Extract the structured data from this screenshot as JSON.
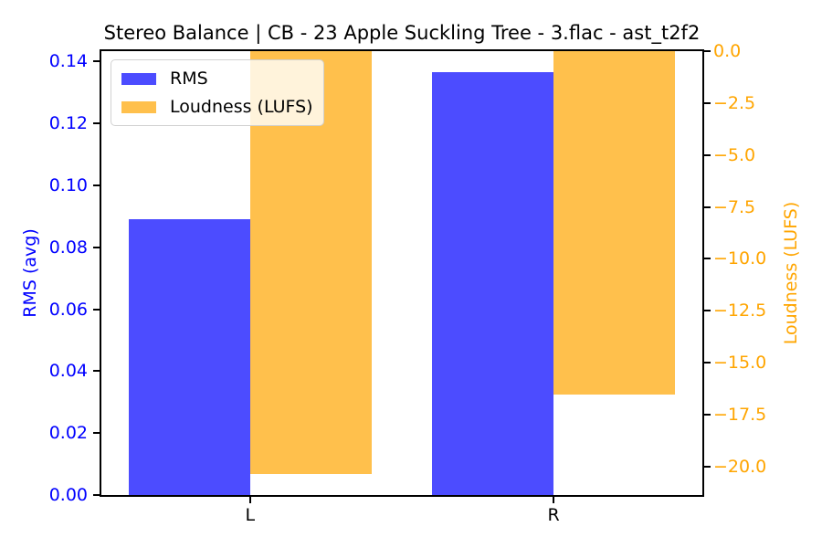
{
  "figure": {
    "background": "#ffffff",
    "axis_color": "#000000"
  },
  "chart_data": {
    "type": "bar",
    "title": "Stereo Balance | CB - 23 Apple Suckling Tree - 3.flac - ast_t2f2",
    "categories": [
      "L",
      "R"
    ],
    "series": [
      {
        "name": "RMS",
        "axis": "left",
        "color": "rgba(0,0,255,0.7)",
        "values": [
          0.089,
          0.1365
        ]
      },
      {
        "name": "Loudness (LUFS)",
        "axis": "right",
        "color": "rgba(255,165,0,0.7)",
        "values": [
          -20.35,
          -16.55
        ]
      }
    ],
    "bar_width": 0.4,
    "xlim": [
      -0.49,
      1.49
    ],
    "x_tick_positions": [
      0,
      1
    ],
    "left_axis": {
      "label": "RMS (avg)",
      "color": "#0000ff",
      "ylim": [
        0,
        0.1433
      ],
      "tick_values": [
        0.0,
        0.02,
        0.04,
        0.06,
        0.08,
        0.1,
        0.12,
        0.14
      ],
      "tick_labels": [
        "0.00",
        "0.02",
        "0.04",
        "0.06",
        "0.08",
        "0.10",
        "0.12",
        "0.14"
      ]
    },
    "right_axis": {
      "label": "Loudness (LUFS)",
      "color": "#ffa500",
      "ylim": [
        -21.37,
        0
      ],
      "tick_values": [
        0,
        -2.5,
        -5,
        -7.5,
        -10,
        -12.5,
        -15,
        -17.5,
        -20
      ],
      "tick_labels": [
        "0.0",
        "−2.5",
        "−5.0",
        "−7.5",
        "−10.0",
        "−12.5",
        "−15.0",
        "−17.5",
        "−20.0"
      ]
    },
    "legend": {
      "position": "upper left"
    },
    "grid": false
  }
}
